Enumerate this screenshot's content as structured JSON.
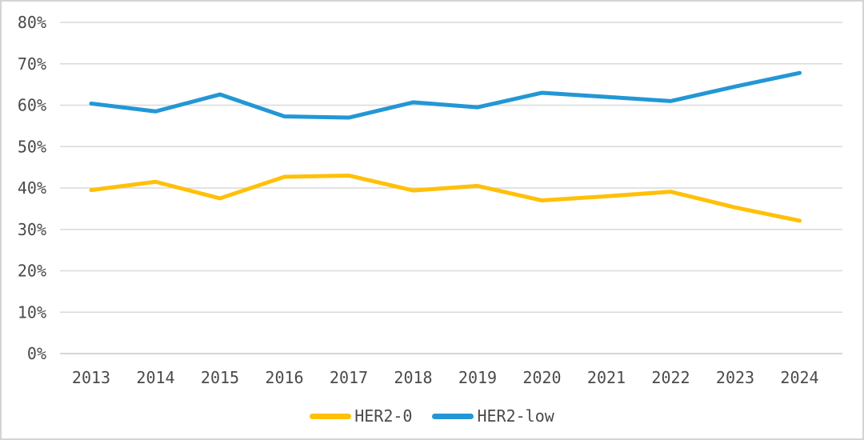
{
  "figure": {
    "background": "#ffffff",
    "border_color": "#d4d4d4",
    "gridline_color": "#d9d9d9",
    "axis_line_color": "#c9c9c9",
    "axis_text_color": "#4a4a4a"
  },
  "chart_data": {
    "type": "line",
    "title": "",
    "xlabel": "",
    "ylabel": "",
    "categories": [
      "2013",
      "2014",
      "2015",
      "2016",
      "2017",
      "2018",
      "2019",
      "2020",
      "2021",
      "2022",
      "2023",
      "2024"
    ],
    "series": [
      {
        "name": "HER2-0",
        "color": "#FFC008",
        "values": [
          39.5,
          41.5,
          37.5,
          42.7,
          43.0,
          39.4,
          40.5,
          37.0,
          38.0,
          39.1,
          35.3,
          32.1
        ]
      },
      {
        "name": "HER2-low",
        "color": "#2397D5",
        "values": [
          60.4,
          58.5,
          62.6,
          57.3,
          57.0,
          60.7,
          59.5,
          63.0,
          62.0,
          61.0,
          64.5,
          67.8
        ]
      }
    ],
    "ylim": [
      0,
      80
    ],
    "ytick_step": 10,
    "ytick_labels": [
      "0%",
      "10%",
      "20%",
      "30%",
      "40%",
      "50%",
      "60%",
      "70%",
      "80%"
    ],
    "grid": "horizontal",
    "legend_position": "bottom"
  }
}
